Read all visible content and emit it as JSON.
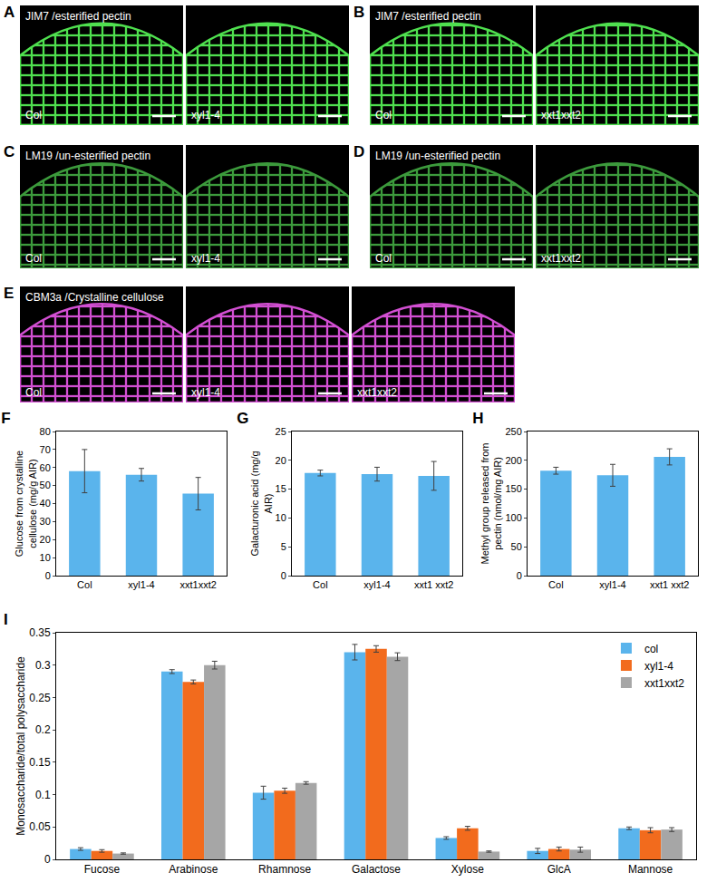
{
  "image_panels": [
    {
      "label": "A",
      "stain": "JIM7 /esterified pectin",
      "color": "#4fe04f",
      "images": [
        "Col",
        "xyl1-4"
      ]
    },
    {
      "label": "B",
      "stain": "JIM7 /esterified pectin",
      "color": "#4fe04f",
      "images": [
        "Col",
        "xxt1xxt2"
      ]
    },
    {
      "label": "C",
      "stain": "LM19 /un-esterified pectin",
      "color": "#3c9a3c",
      "images": [
        "Col",
        "xyl1-4"
      ]
    },
    {
      "label": "D",
      "stain": "LM19 /un-esterified pectin",
      "color": "#3c9a3c",
      "images": [
        "Col",
        "xxt1xxt2"
      ]
    },
    {
      "label": "E",
      "stain": "CBM3a /Crystalline cellulose",
      "color": "#d24fd2",
      "images": [
        "Col",
        "xyl1-4",
        "xxt1xxt2"
      ]
    }
  ],
  "chart_data": [
    {
      "type": "bar",
      "title": "F",
      "y_label": "Glucose from crystalline cellulose (mg/g AIR)",
      "categories": [
        "Col",
        "xyl1-4",
        "xxt1xxt2"
      ],
      "values": [
        58,
        56,
        45.5
      ],
      "errors": [
        12,
        3.5,
        9
      ],
      "color": "#5ab4ec",
      "ylim": [
        0,
        80
      ],
      "yticks": [
        0,
        10,
        20,
        30,
        40,
        50,
        60,
        70,
        80
      ],
      "grid": false
    },
    {
      "type": "bar",
      "title": "G",
      "y_label": "Galacturonic acid (mg/g AIR)",
      "categories": [
        "Col",
        "xyl1-4",
        "xxt1 xxt2"
      ],
      "values": [
        17.8,
        17.6,
        17.3
      ],
      "errors": [
        0.5,
        1.2,
        2.5
      ],
      "color": "#5ab4ec",
      "ylim": [
        0,
        25
      ],
      "yticks": [
        0,
        5,
        10,
        15,
        20,
        25
      ],
      "grid": false
    },
    {
      "type": "bar",
      "title": "H",
      "y_label": "Methyl group released from pectin (nmol/mg AIR)",
      "categories": [
        "Col",
        "xyl1-4",
        "xxt1 xxt2"
      ],
      "values": [
        182,
        174,
        206
      ],
      "errors": [
        6,
        19,
        14
      ],
      "color": "#5ab4ec",
      "ylim": [
        0,
        250
      ],
      "yticks": [
        0,
        50,
        100,
        150,
        200,
        250
      ],
      "grid": false
    },
    {
      "type": "bar",
      "title": "I",
      "y_label": "Monosaccharide/total polysaccharide",
      "categories": [
        "Fucose",
        "Arabinose",
        "Rhamnose",
        "Galactose",
        "Xylose",
        "GlcA",
        "Mannose"
      ],
      "series": [
        {
          "name": "col",
          "color": "#5ab4ec",
          "values": [
            0.016,
            0.29,
            0.103,
            0.32,
            0.033,
            0.013,
            0.048
          ],
          "errors": [
            0.002,
            0.003,
            0.01,
            0.012,
            0.002,
            0.004,
            0.002
          ]
        },
        {
          "name": "xyl1-4",
          "color": "#f26b1d",
          "values": [
            0.013,
            0.274,
            0.106,
            0.325,
            0.048,
            0.016,
            0.045
          ],
          "errors": [
            0.002,
            0.003,
            0.004,
            0.005,
            0.003,
            0.003,
            0.004
          ]
        },
        {
          "name": "xxt1xxt2",
          "color": "#a6a6a6",
          "values": [
            0.009,
            0.3,
            0.118,
            0.313,
            0.012,
            0.015,
            0.046
          ],
          "errors": [
            0.001,
            0.006,
            0.002,
            0.006,
            0.001,
            0.004,
            0.003
          ]
        }
      ],
      "ylim": [
        0,
        0.35
      ],
      "yticks": [
        0,
        0.05,
        0.1,
        0.15,
        0.2,
        0.25,
        0.3,
        0.35
      ],
      "grid": false,
      "legend": "upper right"
    }
  ]
}
